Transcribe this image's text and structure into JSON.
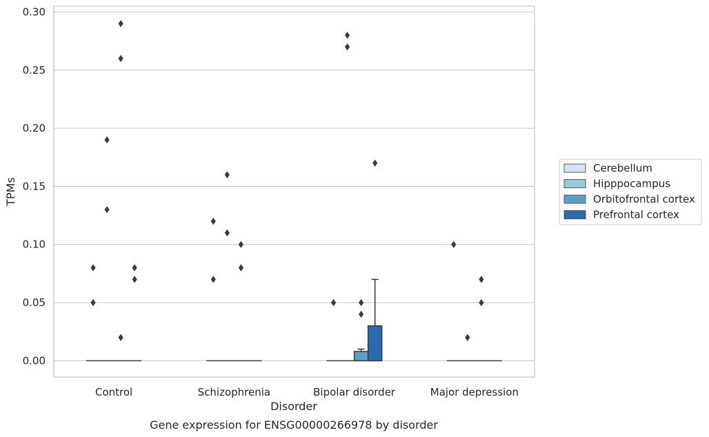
{
  "chart_data": {
    "type": "box",
    "title": "Gene expression for ENSG00000266978 by disorder",
    "xlabel": "Disorder",
    "ylabel": "TPMs",
    "ylim": [
      -0.014,
      0.305
    ],
    "yticks": [
      0.0,
      0.05,
      0.1,
      0.15,
      0.2,
      0.25,
      0.3
    ],
    "ytick_labels": [
      "0.00",
      "0.05",
      "0.10",
      "0.15",
      "0.20",
      "0.25",
      "0.30"
    ],
    "grid": "horizontal",
    "legend_position": "right",
    "categories": [
      "Control",
      "Schizophrenia",
      "Bipolar disorder",
      "Major depression"
    ],
    "colors": {
      "Cerebellum": "#d2e3f3",
      "Hipppocampus": "#9ac8e0",
      "Orbitofrontal cortex": "#5aa0cd",
      "Prefrontal cortex": "#2a6aae",
      "edge": "#3b3b3b",
      "grid": "#cccccc"
    },
    "series": [
      {
        "name": "Cerebellum",
        "boxes": [
          {
            "q1": 0,
            "median": 0,
            "q3": 0,
            "whisker_low": 0,
            "whisker_high": 0,
            "outliers": [
              0.08,
              0.05
            ]
          },
          {
            "q1": 0,
            "median": 0,
            "q3": 0,
            "whisker_low": 0,
            "whisker_high": 0,
            "outliers": [
              0.12,
              0.07
            ]
          },
          {
            "q1": 0,
            "median": 0,
            "q3": 0,
            "whisker_low": 0,
            "whisker_high": 0,
            "outliers": [
              0.05
            ]
          },
          {
            "q1": 0,
            "median": 0,
            "q3": 0,
            "whisker_low": 0,
            "whisker_high": 0,
            "outliers": [
              0.1
            ]
          }
        ]
      },
      {
        "name": "Hipppocampus",
        "boxes": [
          {
            "q1": 0,
            "median": 0,
            "q3": 0,
            "whisker_low": 0,
            "whisker_high": 0,
            "outliers": [
              0.19,
              0.13
            ]
          },
          {
            "q1": 0,
            "median": 0,
            "q3": 0,
            "whisker_low": 0,
            "whisker_high": 0,
            "outliers": [
              0.16,
              0.11
            ]
          },
          {
            "q1": 0,
            "median": 0,
            "q3": 0,
            "whisker_low": 0,
            "whisker_high": 0,
            "outliers": [
              0.28,
              0.27
            ]
          },
          {
            "q1": 0,
            "median": 0,
            "q3": 0,
            "whisker_low": 0,
            "whisker_high": 0,
            "outliers": [
              0.02
            ]
          }
        ]
      },
      {
        "name": "Orbitofrontal cortex",
        "boxes": [
          {
            "q1": 0,
            "median": 0,
            "q3": 0,
            "whisker_low": 0,
            "whisker_high": 0,
            "outliers": [
              0.29,
              0.26,
              0.02
            ]
          },
          {
            "q1": 0,
            "median": 0,
            "q3": 0,
            "whisker_low": 0,
            "whisker_high": 0,
            "outliers": [
              0.1,
              0.08
            ]
          },
          {
            "q1": 0,
            "median": 0,
            "q3": 0.008,
            "whisker_low": 0,
            "whisker_high": 0.01,
            "outliers": [
              0.05,
              0.04
            ]
          },
          {
            "q1": 0,
            "median": 0,
            "q3": 0,
            "whisker_low": 0,
            "whisker_high": 0,
            "outliers": [
              0.07,
              0.05
            ]
          }
        ]
      },
      {
        "name": "Prefrontal cortex",
        "boxes": [
          {
            "q1": 0,
            "median": 0,
            "q3": 0,
            "whisker_low": 0,
            "whisker_high": 0,
            "outliers": [
              0.08,
              0.07
            ]
          },
          {
            "q1": 0,
            "median": 0,
            "q3": 0,
            "whisker_low": 0,
            "whisker_high": 0,
            "outliers": []
          },
          {
            "q1": 0,
            "median": 0,
            "q3": 0.03,
            "whisker_low": 0,
            "whisker_high": 0.07,
            "outliers": [
              0.17
            ]
          },
          {
            "q1": 0,
            "median": 0,
            "q3": 0,
            "whisker_low": 0,
            "whisker_high": 0,
            "outliers": []
          }
        ]
      }
    ]
  }
}
